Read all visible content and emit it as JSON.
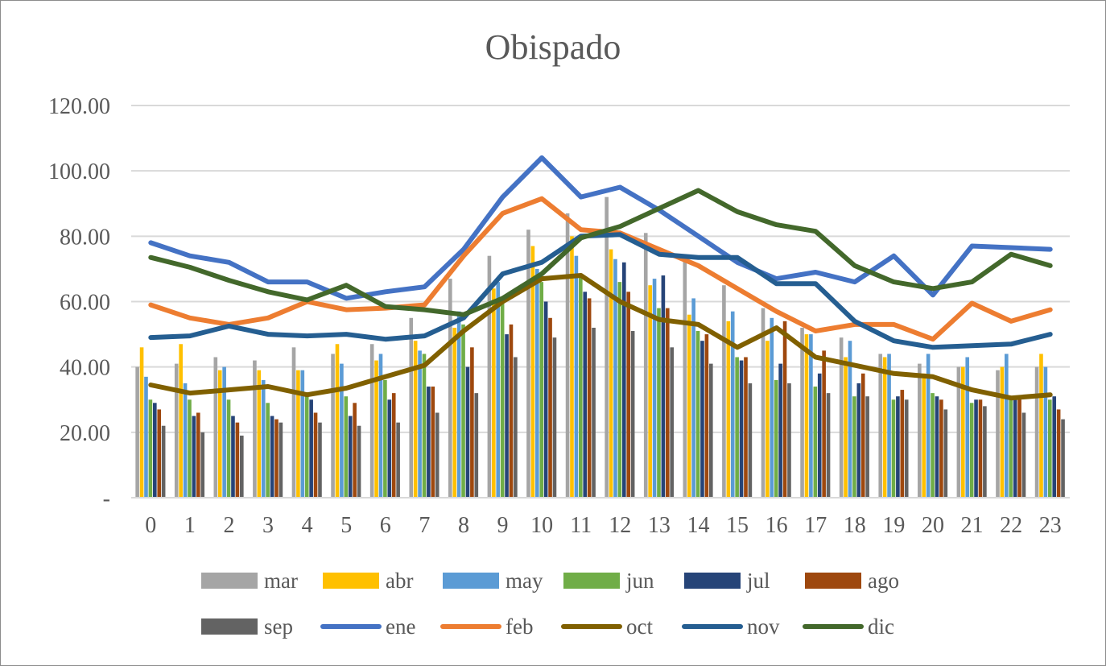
{
  "chart_data": {
    "type": "bar+line",
    "title": "Obispado",
    "xlabel": "",
    "ylabel": "",
    "ylim": [
      0,
      120
    ],
    "yticks": [
      {
        "value": 0,
        "label": "-"
      },
      {
        "value": 20,
        "label": "20.00"
      },
      {
        "value": 40,
        "label": "40.00"
      },
      {
        "value": 60,
        "label": "60.00"
      },
      {
        "value": 80,
        "label": "80.00"
      },
      {
        "value": 100,
        "label": "100.00"
      },
      {
        "value": 120,
        "label": "120.00"
      }
    ],
    "grid": true,
    "legend_position": "bottom",
    "categories": [
      "0",
      "1",
      "2",
      "3",
      "4",
      "5",
      "6",
      "7",
      "8",
      "9",
      "10",
      "11",
      "12",
      "13",
      "14",
      "15",
      "16",
      "17",
      "18",
      "19",
      "20",
      "21",
      "22",
      "23"
    ],
    "bar_series": [
      {
        "name": "mar",
        "color": "#a5a5a5",
        "values": [
          40,
          41,
          43,
          42,
          46,
          44,
          47,
          55,
          67,
          74,
          82,
          87,
          92,
          81,
          74,
          65,
          58,
          52,
          49,
          44,
          41,
          40,
          39,
          40
        ]
      },
      {
        "name": "abr",
        "color": "#ffc000",
        "values": [
          46,
          47,
          39,
          39,
          39,
          47,
          42,
          48,
          52,
          64,
          77,
          80,
          76,
          65,
          56,
          54,
          48,
          50,
          43,
          43,
          38,
          40,
          40,
          44
        ]
      },
      {
        "name": "may",
        "color": "#5b9bd5",
        "values": [
          37,
          35,
          40,
          36,
          39,
          41,
          44,
          45,
          57,
          66,
          70,
          74,
          73,
          67,
          61,
          57,
          55,
          50,
          48,
          44,
          44,
          43,
          44,
          40
        ]
      },
      {
        "name": "jun",
        "color": "#70ad47",
        "values": [
          30,
          30,
          30,
          29,
          31,
          31,
          36,
          44,
          53,
          61,
          66,
          68,
          66,
          58,
          51,
          43,
          36,
          34,
          31,
          30,
          32,
          29,
          31,
          30
        ]
      },
      {
        "name": "jul",
        "color": "#264478",
        "values": [
          29,
          25,
          25,
          25,
          30,
          25,
          30,
          34,
          40,
          50,
          60,
          63,
          72,
          68,
          48,
          42,
          41,
          38,
          35,
          31,
          31,
          30,
          31,
          31
        ]
      },
      {
        "name": "ago",
        "color": "#9e480e",
        "values": [
          27,
          26,
          23,
          24,
          26,
          29,
          32,
          34,
          46,
          53,
          55,
          61,
          63,
          58,
          50,
          43,
          54,
          45,
          38,
          33,
          30,
          30,
          31,
          27
        ]
      },
      {
        "name": "sep",
        "color": "#636363",
        "values": [
          22,
          20,
          19,
          23,
          23,
          22,
          23,
          26,
          32,
          43,
          49,
          52,
          51,
          46,
          41,
          35,
          35,
          32,
          31,
          30,
          27,
          28,
          26,
          24
        ]
      }
    ],
    "line_series": [
      {
        "name": "ene",
        "color": "#4472c4",
        "values": [
          78,
          74,
          72,
          66,
          66,
          61,
          63,
          64.5,
          76,
          92,
          104,
          92,
          95,
          88,
          80,
          72,
          67,
          69,
          66,
          74,
          62,
          77,
          76.5,
          76
        ]
      },
      {
        "name": "feb",
        "color": "#ed7d31",
        "values": [
          59,
          55,
          53,
          55,
          60,
          57.5,
          58,
          59,
          74,
          87,
          91.5,
          82,
          81,
          76,
          71,
          64,
          57,
          51,
          53,
          53,
          48.5,
          59.5,
          54,
          57.5
        ]
      },
      {
        "name": "oct",
        "color": "#806000",
        "values": [
          34.5,
          32,
          33,
          34,
          31.5,
          33.5,
          37,
          40.5,
          51,
          60,
          67,
          68,
          60,
          54.5,
          53,
          46,
          52,
          43,
          40.5,
          38,
          37,
          33,
          30.5,
          31.5
        ]
      },
      {
        "name": "nov",
        "color": "#255e91",
        "values": [
          49,
          49.5,
          52.5,
          50,
          49.5,
          50,
          48.5,
          49.5,
          55,
          68.5,
          72,
          80,
          80.5,
          74.5,
          73.5,
          73.5,
          65.5,
          65.5,
          54,
          48,
          46,
          46.5,
          47,
          50
        ]
      },
      {
        "name": "dic",
        "color": "#43682b",
        "values": [
          73.5,
          70.5,
          66.5,
          63,
          60.5,
          65,
          58.5,
          57.5,
          56,
          61,
          68.5,
          79.5,
          83,
          88.5,
          94,
          87.5,
          83.5,
          81.5,
          71,
          66,
          64,
          66,
          74.5,
          71
        ]
      }
    ],
    "legend_order": [
      "mar",
      "abr",
      "may",
      "jun",
      "jul",
      "ago",
      "sep",
      "ene",
      "feb",
      "oct",
      "nov",
      "dic"
    ]
  }
}
